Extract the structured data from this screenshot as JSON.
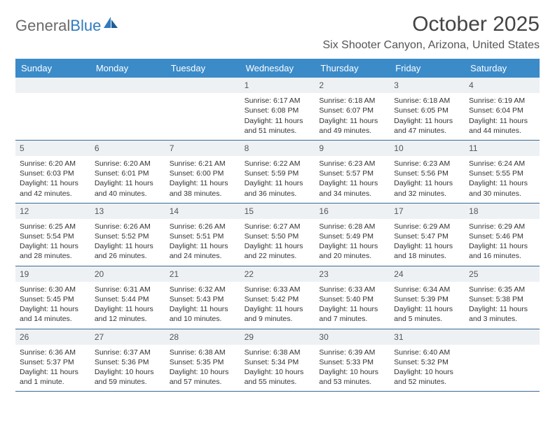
{
  "logo": {
    "text1": "General",
    "text2": "Blue"
  },
  "title": "October 2025",
  "subtitle": "Six Shooter Canyon, Arizona, United States",
  "colors": {
    "header_bg": "#3b8bc9",
    "header_text": "#ffffff",
    "daynum_bg": "#eef1f4",
    "week_border": "#3b6a91",
    "text": "#333333",
    "logo_accent": "#2f7bbf"
  },
  "day_headers": [
    "Sunday",
    "Monday",
    "Tuesday",
    "Wednesday",
    "Thursday",
    "Friday",
    "Saturday"
  ],
  "weeks": [
    [
      null,
      null,
      null,
      {
        "n": "1",
        "sunrise": "6:17 AM",
        "sunset": "6:08 PM",
        "daylight": "11 hours and 51 minutes."
      },
      {
        "n": "2",
        "sunrise": "6:18 AM",
        "sunset": "6:07 PM",
        "daylight": "11 hours and 49 minutes."
      },
      {
        "n": "3",
        "sunrise": "6:18 AM",
        "sunset": "6:05 PM",
        "daylight": "11 hours and 47 minutes."
      },
      {
        "n": "4",
        "sunrise": "6:19 AM",
        "sunset": "6:04 PM",
        "daylight": "11 hours and 44 minutes."
      }
    ],
    [
      {
        "n": "5",
        "sunrise": "6:20 AM",
        "sunset": "6:03 PM",
        "daylight": "11 hours and 42 minutes."
      },
      {
        "n": "6",
        "sunrise": "6:20 AM",
        "sunset": "6:01 PM",
        "daylight": "11 hours and 40 minutes."
      },
      {
        "n": "7",
        "sunrise": "6:21 AM",
        "sunset": "6:00 PM",
        "daylight": "11 hours and 38 minutes."
      },
      {
        "n": "8",
        "sunrise": "6:22 AM",
        "sunset": "5:59 PM",
        "daylight": "11 hours and 36 minutes."
      },
      {
        "n": "9",
        "sunrise": "6:23 AM",
        "sunset": "5:57 PM",
        "daylight": "11 hours and 34 minutes."
      },
      {
        "n": "10",
        "sunrise": "6:23 AM",
        "sunset": "5:56 PM",
        "daylight": "11 hours and 32 minutes."
      },
      {
        "n": "11",
        "sunrise": "6:24 AM",
        "sunset": "5:55 PM",
        "daylight": "11 hours and 30 minutes."
      }
    ],
    [
      {
        "n": "12",
        "sunrise": "6:25 AM",
        "sunset": "5:54 PM",
        "daylight": "11 hours and 28 minutes."
      },
      {
        "n": "13",
        "sunrise": "6:26 AM",
        "sunset": "5:52 PM",
        "daylight": "11 hours and 26 minutes."
      },
      {
        "n": "14",
        "sunrise": "6:26 AM",
        "sunset": "5:51 PM",
        "daylight": "11 hours and 24 minutes."
      },
      {
        "n": "15",
        "sunrise": "6:27 AM",
        "sunset": "5:50 PM",
        "daylight": "11 hours and 22 minutes."
      },
      {
        "n": "16",
        "sunrise": "6:28 AM",
        "sunset": "5:49 PM",
        "daylight": "11 hours and 20 minutes."
      },
      {
        "n": "17",
        "sunrise": "6:29 AM",
        "sunset": "5:47 PM",
        "daylight": "11 hours and 18 minutes."
      },
      {
        "n": "18",
        "sunrise": "6:29 AM",
        "sunset": "5:46 PM",
        "daylight": "11 hours and 16 minutes."
      }
    ],
    [
      {
        "n": "19",
        "sunrise": "6:30 AM",
        "sunset": "5:45 PM",
        "daylight": "11 hours and 14 minutes."
      },
      {
        "n": "20",
        "sunrise": "6:31 AM",
        "sunset": "5:44 PM",
        "daylight": "11 hours and 12 minutes."
      },
      {
        "n": "21",
        "sunrise": "6:32 AM",
        "sunset": "5:43 PM",
        "daylight": "11 hours and 10 minutes."
      },
      {
        "n": "22",
        "sunrise": "6:33 AM",
        "sunset": "5:42 PM",
        "daylight": "11 hours and 9 minutes."
      },
      {
        "n": "23",
        "sunrise": "6:33 AM",
        "sunset": "5:40 PM",
        "daylight": "11 hours and 7 minutes."
      },
      {
        "n": "24",
        "sunrise": "6:34 AM",
        "sunset": "5:39 PM",
        "daylight": "11 hours and 5 minutes."
      },
      {
        "n": "25",
        "sunrise": "6:35 AM",
        "sunset": "5:38 PM",
        "daylight": "11 hours and 3 minutes."
      }
    ],
    [
      {
        "n": "26",
        "sunrise": "6:36 AM",
        "sunset": "5:37 PM",
        "daylight": "11 hours and 1 minute."
      },
      {
        "n": "27",
        "sunrise": "6:37 AM",
        "sunset": "5:36 PM",
        "daylight": "10 hours and 59 minutes."
      },
      {
        "n": "28",
        "sunrise": "6:38 AM",
        "sunset": "5:35 PM",
        "daylight": "10 hours and 57 minutes."
      },
      {
        "n": "29",
        "sunrise": "6:38 AM",
        "sunset": "5:34 PM",
        "daylight": "10 hours and 55 minutes."
      },
      {
        "n": "30",
        "sunrise": "6:39 AM",
        "sunset": "5:33 PM",
        "daylight": "10 hours and 53 minutes."
      },
      {
        "n": "31",
        "sunrise": "6:40 AM",
        "sunset": "5:32 PM",
        "daylight": "10 hours and 52 minutes."
      },
      null
    ]
  ],
  "labels": {
    "sunrise": "Sunrise:",
    "sunset": "Sunset:",
    "daylight": "Daylight:"
  }
}
